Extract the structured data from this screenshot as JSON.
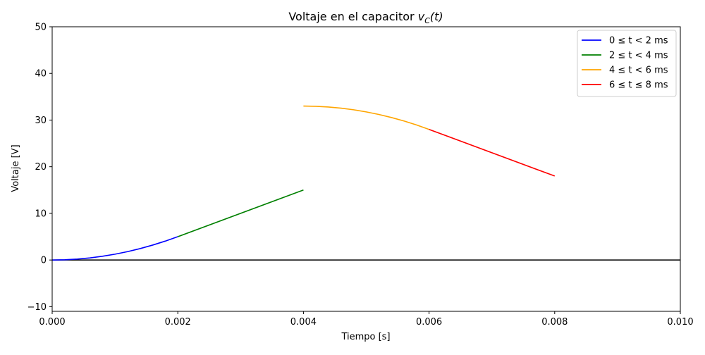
{
  "chart_data": {
    "type": "line",
    "title_main": "Voltaje en el capacitor ",
    "title_var": "v",
    "title_sub": "C",
    "title_arg": "(t)",
    "xlabel": "Tiempo [s]",
    "ylabel": "Voltaje [V]",
    "xlim": [
      0,
      0.01
    ],
    "ylim": [
      -11,
      50
    ],
    "xticks": [
      0,
      0.002,
      0.004,
      0.006,
      0.008,
      0.01
    ],
    "xtick_labels": [
      "0.000",
      "0.002",
      "0.004",
      "0.006",
      "0.008",
      "0.010"
    ],
    "yticks": [
      -10,
      0,
      10,
      20,
      30,
      40,
      50
    ],
    "ytick_labels": [
      "−10",
      "0",
      "10",
      "20",
      "30",
      "40",
      "50"
    ],
    "hline": {
      "y": 0,
      "color": "#000000"
    },
    "grid": false,
    "legend_position": "top-right",
    "series": [
      {
        "name": "0 ≤ t < 2 ms",
        "color": "#0000ff",
        "x": [
          0,
          0.0002,
          0.0004,
          0.0006,
          0.0008,
          0.001,
          0.0012,
          0.0014,
          0.0016,
          0.0018,
          0.002
        ],
        "y": [
          0,
          0.05,
          0.2,
          0.45,
          0.8,
          1.25,
          1.8,
          2.45,
          3.2,
          4.05,
          5
        ]
      },
      {
        "name": "2 ≤ t < 4 ms",
        "color": "#008000",
        "x": [
          0.002,
          0.004
        ],
        "y": [
          5,
          15
        ]
      },
      {
        "name": "4 ≤ t < 6 ms",
        "color": "#ffa500",
        "x": [
          0.004,
          0.0042,
          0.0044,
          0.0046,
          0.0048,
          0.005,
          0.0052,
          0.0054,
          0.0056,
          0.0058,
          0.006
        ],
        "y": [
          33,
          32.95,
          32.8,
          32.55,
          32.2,
          31.75,
          31.2,
          30.55,
          29.8,
          28.95,
          28
        ]
      },
      {
        "name": "6 ≤ t ≤ 8 ms",
        "color": "#ff0000",
        "x": [
          0.006,
          0.008
        ],
        "y": [
          28,
          18
        ]
      }
    ]
  }
}
